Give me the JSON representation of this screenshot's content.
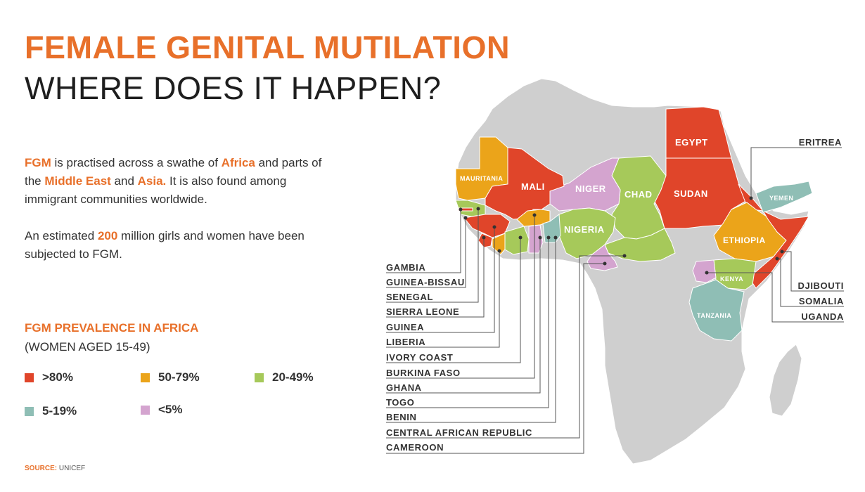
{
  "title": {
    "line1": "FEMALE GENITAL MUTILATION",
    "line2": "WHERE DOES IT HAPPEN?"
  },
  "intro": {
    "p1": [
      "FGM",
      " is practised across a swathe of ",
      "Africa",
      " and parts of the ",
      "Middle East",
      " and ",
      "Asia.",
      " It is also found among immigrant communities worldwide."
    ],
    "p2": [
      "An estimated ",
      "200",
      " million girls and women have been subjected to FGM."
    ]
  },
  "legend": {
    "title": "FGM PREVALENCE IN AFRICA",
    "subtitle": "(WOMEN AGED 15-49)",
    "items": [
      {
        "label": ">80%",
        "color": "#e0452a"
      },
      {
        "label": "50-79%",
        "color": "#eba41a"
      },
      {
        "label": "20-49%",
        "color": "#a6c95a"
      },
      {
        "label": "5-19%",
        "color": "#8fbeb5"
      },
      {
        "label": "<5%",
        "color": "#d4a4cf"
      }
    ]
  },
  "source": {
    "label": "SOURCE:",
    "value": "UNICEF"
  },
  "colors": {
    "accent": "#e8702a",
    "land": "#cfcfcf",
    "band_80plus": "#e0452a",
    "band_50_79": "#eba41a",
    "band_20_49": "#a6c95a",
    "band_5_19": "#8fbeb5",
    "band_under5": "#d4a4cf"
  },
  "map": {
    "on_map_labels": {
      "egypt": "EGYPT",
      "sudan": "SUDAN",
      "mauritania": "MAURITANIA",
      "mali": "MALI",
      "niger": "NIGER",
      "chad": "CHAD",
      "nigeria": "NIGERIA",
      "ethiopia": "ETHIOPIA",
      "yemen": "YEMEN",
      "kenya": "KENYA",
      "tanzania": "TANZANIA"
    },
    "west_africa_callouts": [
      "GAMBIA",
      "GUINEA-BISSAU",
      "SENEGAL",
      "SIERRA LEONE",
      "GUINEA",
      "LIBERIA",
      "IVORY COAST",
      "BURKINA FASO",
      "GHANA",
      "TOGO",
      "BENIN",
      "CENTRAL AFRICAN REPUBLIC",
      "CAMEROON"
    ],
    "east_africa_callouts": [
      "ERITREA",
      "DJIBOUTI",
      "SOMALIA",
      "UGANDA"
    ]
  }
}
